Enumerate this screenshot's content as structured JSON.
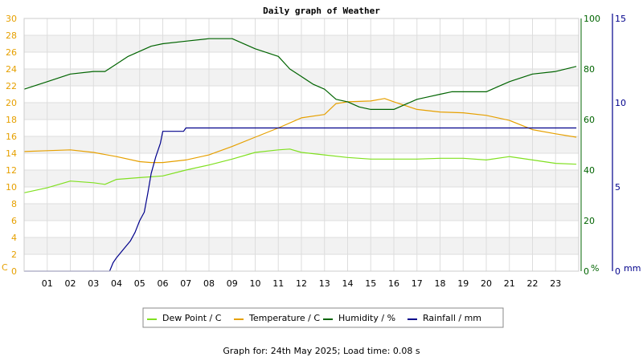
{
  "chart_data": {
    "type": "line",
    "title": "Daily graph of Weather",
    "x_ticks": [
      "01",
      "02",
      "03",
      "04",
      "05",
      "06",
      "07",
      "08",
      "09",
      "10",
      "11",
      "12",
      "13",
      "14",
      "15",
      "16",
      "17",
      "18",
      "19",
      "20",
      "21",
      "22",
      "23"
    ],
    "xlim": [
      0,
      24
    ],
    "axes": {
      "temperature": {
        "unit_label": "C",
        "ylim": [
          0,
          30
        ],
        "ticks": [
          0,
          2,
          4,
          6,
          8,
          10,
          12,
          14,
          16,
          18,
          20,
          22,
          24,
          26,
          28,
          30
        ],
        "color": "#e6a000"
      },
      "humidity": {
        "unit_label": "%",
        "ylim": [
          0,
          100
        ],
        "ticks": [
          0,
          20,
          40,
          60,
          80,
          100
        ],
        "color": "#006400"
      },
      "rainfall": {
        "unit_label": "mm",
        "ylim": [
          0,
          15
        ],
        "ticks": [
          0,
          5,
          10,
          15
        ],
        "color": "#00008b"
      }
    },
    "series": [
      {
        "name": "Dew Point / C",
        "axis": "temperature",
        "color": "#80e020",
        "x": [
          0,
          1,
          2,
          3,
          3.5,
          4,
          5,
          6,
          7,
          8,
          9,
          10,
          11,
          11.5,
          12,
          13,
          14,
          15,
          16,
          17,
          18,
          19,
          20,
          21,
          22,
          23,
          23.9
        ],
        "y": [
          9.3,
          9.9,
          10.7,
          10.5,
          10.3,
          10.9,
          11.1,
          11.3,
          12,
          12.6,
          13.3,
          14.1,
          14.4,
          14.5,
          14.1,
          13.8,
          13.5,
          13.3,
          13.3,
          13.3,
          13.4,
          13.4,
          13.2,
          13.6,
          13.2,
          12.8,
          12.7
        ]
      },
      {
        "name": "Temperature / C",
        "axis": "temperature",
        "color": "#e6a000",
        "x": [
          0,
          1,
          2,
          3,
          4,
          5,
          5.5,
          6,
          7,
          8,
          9,
          10,
          11,
          12,
          13,
          13.5,
          14,
          15,
          15.6,
          16,
          17,
          18,
          19,
          20,
          21,
          22,
          23,
          23.9
        ],
        "y": [
          14.2,
          14.3,
          14.4,
          14.1,
          13.6,
          13.0,
          12.9,
          12.9,
          13.2,
          13.8,
          14.8,
          15.9,
          17.0,
          18.2,
          18.6,
          19.9,
          20.1,
          20.2,
          20.5,
          20.1,
          19.2,
          18.9,
          18.8,
          18.5,
          17.9,
          16.8,
          16.3,
          15.9
        ]
      },
      {
        "name": "Humidity / %",
        "axis": "humidity",
        "color": "#006400",
        "x": [
          0,
          1,
          2,
          3,
          3.5,
          4,
          4.5,
          5,
          5.5,
          6,
          7,
          8,
          9,
          10,
          11,
          11.5,
          12,
          12.5,
          13,
          13.5,
          14,
          14.5,
          15,
          16,
          16.5,
          17,
          17.5,
          18,
          18.5,
          19,
          20,
          20.5,
          21,
          22,
          23,
          23.9
        ],
        "y": [
          72,
          75,
          78,
          79,
          79,
          82,
          85,
          87,
          89,
          90,
          91,
          92,
          92,
          88,
          85,
          80,
          77,
          74,
          72,
          68,
          67,
          65,
          64,
          64,
          66,
          68,
          69,
          70,
          71,
          71,
          71,
          73,
          75,
          78,
          79,
          81
        ]
      },
      {
        "name": "Rainfall / mm",
        "axis": "rainfall",
        "color": "#00008b",
        "x": [
          0,
          3.7,
          3.85,
          4,
          4.3,
          4.6,
          4.8,
          5,
          5.2,
          5.35,
          5.5,
          5.7,
          5.9,
          6,
          6.3,
          6.6,
          6.9,
          7,
          7.5,
          8,
          9,
          10,
          11,
          12,
          13,
          14,
          15,
          16,
          17,
          18,
          19,
          20,
          21,
          22,
          23,
          23.9
        ],
        "y": [
          0,
          0,
          0.5,
          0.8,
          1.3,
          1.8,
          2.3,
          3.0,
          3.5,
          4.6,
          5.8,
          6.8,
          7.6,
          8.3,
          8.3,
          8.3,
          8.3,
          8.5,
          8.5,
          8.5,
          8.5,
          8.5,
          8.5,
          8.5,
          8.5,
          8.5,
          8.5,
          8.5,
          8.5,
          8.5,
          8.5,
          8.5,
          8.5,
          8.5,
          8.5,
          8.5
        ]
      }
    ],
    "legend_placement": "bottom-center",
    "grid": true
  },
  "footer": {
    "text": "Graph for: 24th May 2025; Load time: 0.08 s"
  }
}
